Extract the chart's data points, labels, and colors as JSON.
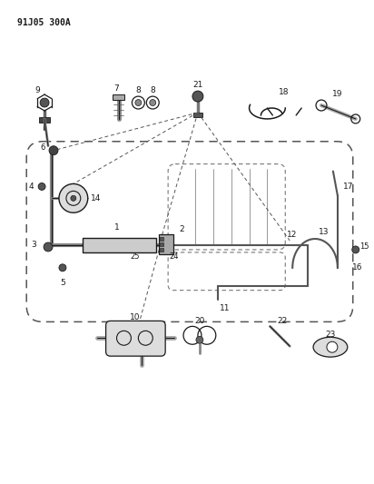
{
  "title": "91J05 300A",
  "bg_color": "#ffffff",
  "lc": "#1a1a1a",
  "fig_width": 4.12,
  "fig_height": 5.33,
  "dpi": 100
}
